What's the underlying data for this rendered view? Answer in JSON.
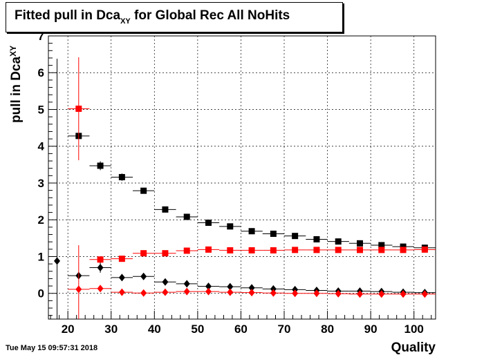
{
  "chart_data": {
    "type": "scatter",
    "title_main": "Fitted pull in Dca",
    "title_sub": "XY",
    "title_rest": " for Global Rec All NoHits",
    "xlabel": "Quality",
    "ylabel_main": "pull in Dca",
    "ylabel_sub": "XY",
    "xlim": [
      15.5,
      105
    ],
    "ylim": [
      -0.7,
      7
    ],
    "x_ticks": [
      20,
      30,
      40,
      50,
      60,
      70,
      80,
      90,
      100
    ],
    "y_ticks": [
      0,
      1,
      2,
      3,
      4,
      5,
      6,
      7
    ],
    "x_bin_half_width": 2.5,
    "series": [
      {
        "marker": "square",
        "color": "#000000",
        "points": [
          {
            "x": 22.5,
            "y": 4.28,
            "err": 0.0
          },
          {
            "x": 27.5,
            "y": 3.47,
            "err": 0.12
          },
          {
            "x": 32.5,
            "y": 3.16,
            "err": 0.1
          },
          {
            "x": 37.5,
            "y": 2.79,
            "err": 0.06
          },
          {
            "x": 42.5,
            "y": 2.28,
            "err": 0.04
          },
          {
            "x": 47.5,
            "y": 2.08,
            "err": 0.03
          },
          {
            "x": 52.5,
            "y": 1.92,
            "err": 0.02
          },
          {
            "x": 57.5,
            "y": 1.82,
            "err": 0.02
          },
          {
            "x": 62.5,
            "y": 1.69,
            "err": 0.02
          },
          {
            "x": 67.5,
            "y": 1.62,
            "err": 0.02
          },
          {
            "x": 72.5,
            "y": 1.56,
            "err": 0.02
          },
          {
            "x": 77.5,
            "y": 1.47,
            "err": 0.02
          },
          {
            "x": 82.5,
            "y": 1.41,
            "err": 0.02
          },
          {
            "x": 87.5,
            "y": 1.36,
            "err": 0.02
          },
          {
            "x": 92.5,
            "y": 1.31,
            "err": 0.02
          },
          {
            "x": 97.5,
            "y": 1.27,
            "err": 0.02
          },
          {
            "x": 102.5,
            "y": 1.24,
            "err": 0.02
          }
        ]
      },
      {
        "marker": "square",
        "color": "#ff0000",
        "points": [
          {
            "x": 22.5,
            "y": 5.02,
            "err": 1.4
          },
          {
            "x": 27.5,
            "y": 0.92,
            "err": 0.04
          },
          {
            "x": 32.5,
            "y": 0.94,
            "err": 0.03
          },
          {
            "x": 37.5,
            "y": 1.09,
            "err": 0.03
          },
          {
            "x": 42.5,
            "y": 1.09,
            "err": 0.02
          },
          {
            "x": 47.5,
            "y": 1.16,
            "err": 0.02
          },
          {
            "x": 52.5,
            "y": 1.19,
            "err": 0.02
          },
          {
            "x": 57.5,
            "y": 1.17,
            "err": 0.02
          },
          {
            "x": 62.5,
            "y": 1.17,
            "err": 0.02
          },
          {
            "x": 67.5,
            "y": 1.17,
            "err": 0.02
          },
          {
            "x": 72.5,
            "y": 1.18,
            "err": 0.02
          },
          {
            "x": 77.5,
            "y": 1.18,
            "err": 0.02
          },
          {
            "x": 82.5,
            "y": 1.18,
            "err": 0.02
          },
          {
            "x": 87.5,
            "y": 1.18,
            "err": 0.02
          },
          {
            "x": 92.5,
            "y": 1.18,
            "err": 0.02
          },
          {
            "x": 97.5,
            "y": 1.18,
            "err": 0.02
          },
          {
            "x": 102.5,
            "y": 1.19,
            "err": 0.02
          }
        ]
      },
      {
        "marker": "diamond",
        "color": "#000000",
        "points": [
          {
            "x": 17.5,
            "y": 0.88,
            "err": 5.5,
            "xerr": 0
          },
          {
            "x": 22.5,
            "y": 0.48,
            "err": 0.0
          },
          {
            "x": 27.5,
            "y": 0.7,
            "err": 0.14
          },
          {
            "x": 32.5,
            "y": 0.43,
            "err": 0.05
          },
          {
            "x": 37.5,
            "y": 0.46,
            "err": 0.04
          },
          {
            "x": 42.5,
            "y": 0.31,
            "err": 0.03
          },
          {
            "x": 47.5,
            "y": 0.26,
            "err": 0.02
          },
          {
            "x": 52.5,
            "y": 0.19,
            "err": 0.02
          },
          {
            "x": 57.5,
            "y": 0.18,
            "err": 0.02
          },
          {
            "x": 62.5,
            "y": 0.15,
            "err": 0.02
          },
          {
            "x": 67.5,
            "y": 0.12,
            "err": 0.02
          },
          {
            "x": 72.5,
            "y": 0.1,
            "err": 0.02
          },
          {
            "x": 77.5,
            "y": 0.08,
            "err": 0.02
          },
          {
            "x": 82.5,
            "y": 0.06,
            "err": 0.02
          },
          {
            "x": 87.5,
            "y": 0.06,
            "err": 0.02
          },
          {
            "x": 92.5,
            "y": 0.05,
            "err": 0.02
          },
          {
            "x": 97.5,
            "y": 0.03,
            "err": 0.02
          },
          {
            "x": 102.5,
            "y": 0.02,
            "err": 0.02
          }
        ]
      },
      {
        "marker": "diamond",
        "color": "#ff0000",
        "points": [
          {
            "x": 22.5,
            "y": 0.11,
            "err": 1.2
          },
          {
            "x": 27.5,
            "y": 0.13,
            "err": 0.04
          },
          {
            "x": 32.5,
            "y": 0.03,
            "err": 0.03
          },
          {
            "x": 37.5,
            "y": 0.01,
            "err": 0.02
          },
          {
            "x": 42.5,
            "y": 0.03,
            "err": 0.02
          },
          {
            "x": 47.5,
            "y": 0.05,
            "err": 0.02
          },
          {
            "x": 52.5,
            "y": 0.05,
            "err": 0.02
          },
          {
            "x": 57.5,
            "y": 0.03,
            "err": 0.02
          },
          {
            "x": 62.5,
            "y": 0.02,
            "err": 0.02
          },
          {
            "x": 67.5,
            "y": 0.01,
            "err": 0.02
          },
          {
            "x": 72.5,
            "y": 0.0,
            "err": 0.02
          },
          {
            "x": 77.5,
            "y": 0.0,
            "err": 0.02
          },
          {
            "x": 82.5,
            "y": -0.01,
            "err": 0.02
          },
          {
            "x": 87.5,
            "y": -0.02,
            "err": 0.02
          },
          {
            "x": 92.5,
            "y": -0.02,
            "err": 0.02
          },
          {
            "x": 97.5,
            "y": -0.02,
            "err": 0.02
          },
          {
            "x": 102.5,
            "y": -0.02,
            "err": 0.02
          }
        ]
      }
    ]
  },
  "footer": {
    "timestamp": "Tue May 15 09:57:31 2018"
  }
}
